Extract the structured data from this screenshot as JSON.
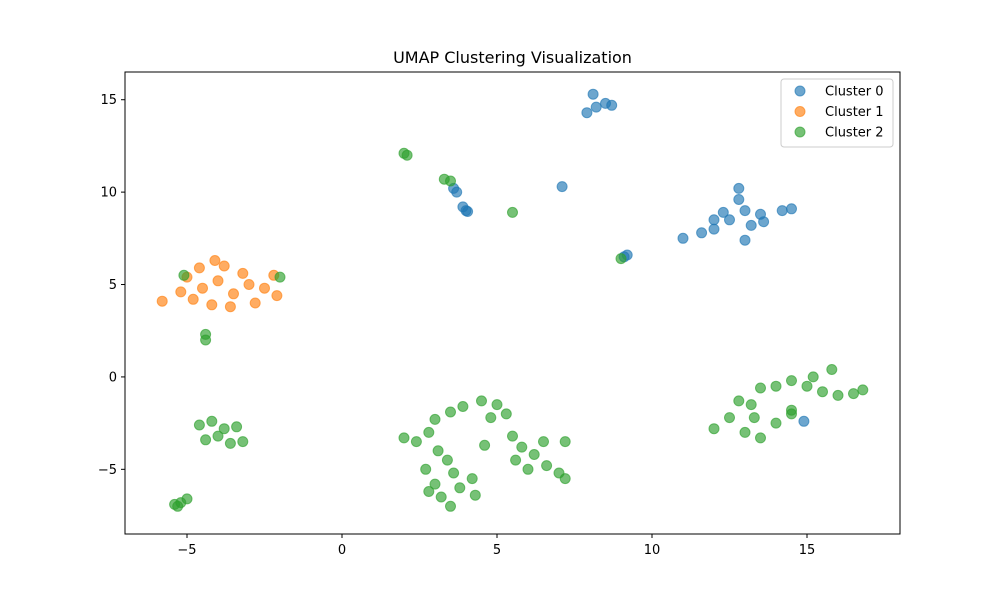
{
  "chart_data": {
    "type": "scatter",
    "title": "UMAP Clustering Visualization",
    "xlabel": "",
    "ylabel": "",
    "xlim": [
      -7,
      18
    ],
    "ylim": [
      -8.5,
      16.5
    ],
    "xticks": [
      -5,
      0,
      5,
      10,
      15
    ],
    "yticks": [
      -5,
      0,
      5,
      10,
      15
    ],
    "xtick_labels": [
      "−5",
      "0",
      "5",
      "10",
      "15"
    ],
    "ytick_labels": [
      "−5",
      "0",
      "5",
      "10",
      "15"
    ],
    "grid": false,
    "legend_position": "top-right",
    "series": [
      {
        "name": "Cluster 0",
        "color": "#1f77b4",
        "alpha": 0.65,
        "points": [
          [
            12.5,
            8.5
          ],
          [
            12.0,
            8.0
          ],
          [
            13.0,
            9.0
          ],
          [
            13.5,
            8.8
          ],
          [
            14.2,
            9.0
          ],
          [
            11.6,
            7.8
          ],
          [
            12.8,
            9.6
          ],
          [
            13.2,
            8.2
          ],
          [
            12.3,
            8.9
          ],
          [
            11.0,
            7.5
          ],
          [
            13.0,
            7.4
          ],
          [
            14.5,
            9.1
          ],
          [
            12.8,
            10.2
          ],
          [
            13.6,
            8.4
          ],
          [
            12.0,
            8.5
          ],
          [
            8.2,
            14.6
          ],
          [
            8.5,
            14.8
          ],
          [
            7.9,
            14.3
          ],
          [
            8.1,
            15.3
          ],
          [
            8.7,
            14.7
          ],
          [
            3.6,
            10.2
          ],
          [
            3.7,
            10.0
          ],
          [
            3.9,
            9.2
          ],
          [
            4.0,
            9.0
          ],
          [
            4.05,
            8.95
          ],
          [
            7.1,
            10.3
          ],
          [
            9.1,
            6.5
          ],
          [
            9.2,
            6.6
          ],
          [
            14.9,
            -2.4
          ]
        ]
      },
      {
        "name": "Cluster 1",
        "color": "#ff7f0e",
        "alpha": 0.65,
        "points": [
          [
            -4.5,
            4.8
          ],
          [
            -4.0,
            5.2
          ],
          [
            -3.5,
            4.5
          ],
          [
            -3.0,
            5.0
          ],
          [
            -2.5,
            4.8
          ],
          [
            -4.8,
            4.2
          ],
          [
            -2.2,
            5.5
          ],
          [
            -3.8,
            6.0
          ],
          [
            -4.2,
            3.9
          ],
          [
            -2.8,
            4.0
          ],
          [
            -3.2,
            5.6
          ],
          [
            -5.8,
            4.1
          ],
          [
            -5.2,
            4.6
          ],
          [
            -4.1,
            6.3
          ],
          [
            -2.1,
            4.4
          ],
          [
            -3.6,
            3.8
          ],
          [
            -5.0,
            5.4
          ],
          [
            -4.6,
            5.9
          ]
        ]
      },
      {
        "name": "Cluster 2",
        "color": "#2ca02c",
        "alpha": 0.65,
        "points": [
          [
            2.0,
            12.1
          ],
          [
            2.1,
            12.0
          ],
          [
            3.3,
            10.7
          ],
          [
            3.5,
            10.6
          ],
          [
            5.5,
            8.9
          ],
          [
            9.0,
            6.4
          ],
          [
            -5.1,
            5.5
          ],
          [
            -2.0,
            5.4
          ],
          [
            -4.4,
            2.3
          ],
          [
            -4.4,
            2.0
          ],
          [
            -4.6,
            -2.6
          ],
          [
            -4.2,
            -2.4
          ],
          [
            -3.8,
            -2.8
          ],
          [
            -3.4,
            -2.7
          ],
          [
            -3.2,
            -3.5
          ],
          [
            -4.0,
            -3.2
          ],
          [
            -4.4,
            -3.4
          ],
          [
            -3.6,
            -3.6
          ],
          [
            -5.4,
            -6.9
          ],
          [
            -5.2,
            -6.8
          ],
          [
            -5.0,
            -6.6
          ],
          [
            -5.3,
            -7.0
          ],
          [
            2.0,
            -3.3
          ],
          [
            2.4,
            -3.5
          ],
          [
            2.8,
            -3.0
          ],
          [
            3.0,
            -2.3
          ],
          [
            3.4,
            -4.5
          ],
          [
            2.7,
            -5.0
          ],
          [
            3.0,
            -5.8
          ],
          [
            3.2,
            -6.5
          ],
          [
            3.8,
            -6.0
          ],
          [
            3.5,
            -7.0
          ],
          [
            4.2,
            -5.5
          ],
          [
            2.8,
            -6.2
          ],
          [
            3.6,
            -5.2
          ],
          [
            4.3,
            -6.4
          ],
          [
            3.1,
            -4.0
          ],
          [
            3.9,
            -1.6
          ],
          [
            4.5,
            -1.3
          ],
          [
            5.0,
            -1.5
          ],
          [
            5.3,
            -2.0
          ],
          [
            3.5,
            -1.9
          ],
          [
            4.8,
            -2.2
          ],
          [
            5.5,
            -3.2
          ],
          [
            5.8,
            -3.8
          ],
          [
            6.2,
            -4.2
          ],
          [
            6.6,
            -4.8
          ],
          [
            7.0,
            -5.2
          ],
          [
            7.2,
            -5.5
          ],
          [
            6.0,
            -5.0
          ],
          [
            6.5,
            -3.5
          ],
          [
            5.6,
            -4.5
          ],
          [
            7.2,
            -3.5
          ],
          [
            4.6,
            -3.7
          ],
          [
            12.0,
            -2.8
          ],
          [
            12.5,
            -2.2
          ],
          [
            13.0,
            -3.0
          ],
          [
            13.5,
            -3.3
          ],
          [
            14.0,
            -2.5
          ],
          [
            14.5,
            -1.8
          ],
          [
            13.2,
            -1.5
          ],
          [
            12.8,
            -1.3
          ],
          [
            14.0,
            -0.5
          ],
          [
            14.5,
            -0.2
          ],
          [
            15.0,
            -0.5
          ],
          [
            15.5,
            -0.8
          ],
          [
            16.0,
            -1.0
          ],
          [
            16.5,
            -0.9
          ],
          [
            15.8,
            0.4
          ],
          [
            15.2,
            0.0
          ],
          [
            13.5,
            -0.6
          ],
          [
            16.8,
            -0.7
          ],
          [
            14.5,
            -2.0
          ],
          [
            13.3,
            -2.2
          ]
        ]
      }
    ]
  }
}
